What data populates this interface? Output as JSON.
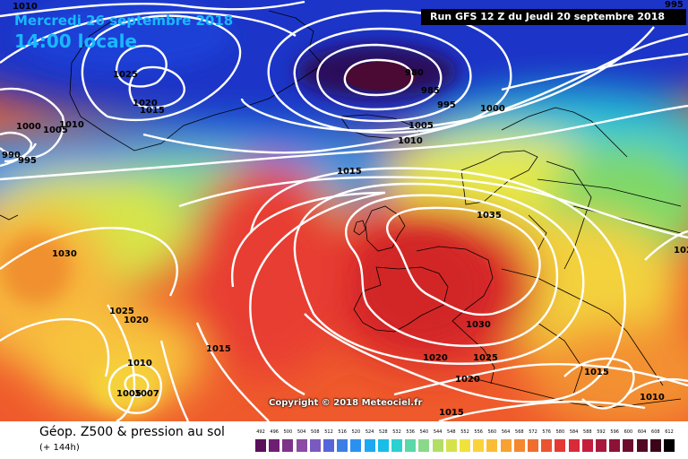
{
  "header": {
    "date": "Mercredi 26 septembre 2018",
    "local_time": "14:00 locale",
    "run": "Run GFS 12 Z du Jeudi 20 septembre 2018"
  },
  "copyright": "Copyright © 2018 Meteociel.fr",
  "footer": {
    "title": "Géop. Z500 & pression au sol",
    "subtitle": "(+ 144h)"
  },
  "isobar_labels": [
    "1010",
    "995",
    "1025",
    "1020",
    "1015",
    "1000",
    "1005",
    "1010",
    "990",
    "995",
    "980",
    "985",
    "995",
    "1000",
    "1005",
    "1010",
    "1015",
    "1030",
    "1035",
    "1025",
    "1020",
    "1015",
    "1010",
    "1005",
    "1007",
    "1030",
    "1025",
    "1020",
    "1015",
    "1010",
    "1020",
    "1015",
    "102"
  ],
  "color_scale": {
    "ticks": [
      "492",
      "496",
      "500",
      "504",
      "508",
      "512",
      "516",
      "520",
      "524",
      "528",
      "532",
      "536",
      "540",
      "544",
      "548",
      "552",
      "556",
      "560",
      "564",
      "568",
      "572",
      "576",
      "580",
      "584",
      "588",
      "592",
      "596",
      "600",
      "604",
      "608",
      "612"
    ],
    "colors": [
      "#5a0f5a",
      "#6e1f73",
      "#7e3389",
      "#8b4aa3",
      "#7a5ac0",
      "#5566d8",
      "#3b7ee6",
      "#2a91f0",
      "#1da8f2",
      "#18bde8",
      "#2ad1d0",
      "#5ad8a8",
      "#8ad98a",
      "#b2de66",
      "#d6e24a",
      "#f0e23c",
      "#fbd23a",
      "#fbbd36",
      "#f7a232",
      "#f3882e",
      "#ef6e2e",
      "#ea5430",
      "#e43a34",
      "#d82a38",
      "#c41e3c",
      "#a8183c",
      "#8c1236",
      "#6e0c2e",
      "#520824",
      "#3a041a",
      "#000000"
    ]
  }
}
